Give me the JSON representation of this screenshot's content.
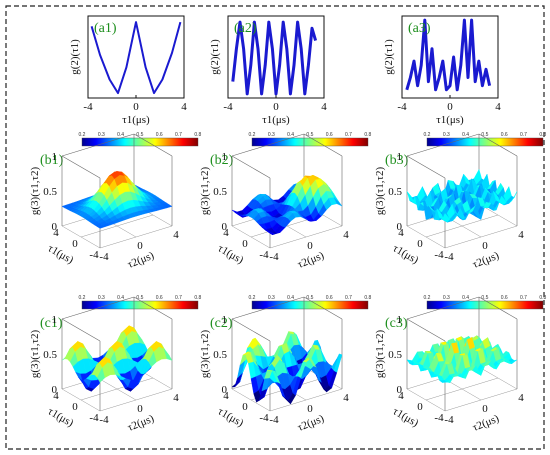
{
  "panels_a": [
    {
      "label": "(a1)",
      "ylabel": "g(2)(τ1)",
      "xlabel": "τ1(μs)",
      "xticks": [
        "-4",
        "0",
        "4"
      ]
    },
    {
      "label": "(a2)",
      "ylabel": "g(2)(τ1)",
      "xlabel": "τ1(μs)",
      "xticks": [
        "-4",
        "0",
        "4"
      ]
    },
    {
      "label": "(a3)",
      "ylabel": "g(2)(τ1)",
      "xlabel": "τ1(μs)",
      "xticks": [
        "-4",
        "0",
        "4"
      ]
    }
  ],
  "panels_3d": [
    {
      "label": "(b1)",
      "zlabel": "g(3)(τ1,τ2)",
      "x1label": "τ1(μs)",
      "x2label": "τ2(μs)",
      "zticks": [
        "0",
        "0.5",
        "1"
      ],
      "t1ticks": [
        "4",
        "0",
        "-4"
      ],
      "t2ticks": [
        "-4",
        "0",
        "4"
      ]
    },
    {
      "label": "(b2)",
      "zlabel": "g(3)(τ1,τ2)",
      "x1label": "τ1(μs)",
      "x2label": "τ2(μs)",
      "zticks": [
        "0",
        "0.5",
        "1"
      ],
      "t1ticks": [
        "4",
        "0",
        "-4"
      ],
      "t2ticks": [
        "-4",
        "0",
        "4"
      ]
    },
    {
      "label": "(b3)",
      "zlabel": "g(3)(τ1,τ2)",
      "x1label": "τ1(μs)",
      "x2label": "τ2(μs)",
      "zticks": [
        "0",
        "0.5",
        "1"
      ],
      "t1ticks": [
        "4",
        "0",
        "-4"
      ],
      "t2ticks": [
        "-4",
        "0",
        "4"
      ]
    },
    {
      "label": "(c1)",
      "zlabel": "g(3)(τ1,τ2)",
      "x1label": "τ1(μs)",
      "x2label": "τ2(μs)",
      "zticks": [
        "0",
        "0.5",
        "1"
      ],
      "t1ticks": [
        "4",
        "0",
        "-4"
      ],
      "t2ticks": [
        "-4",
        "0",
        "4"
      ]
    },
    {
      "label": "(c2)",
      "zlabel": "g(3)(τ1,τ2)",
      "x1label": "τ1(μs)",
      "x2label": "τ2(μs)",
      "zticks": [
        "0",
        "0.5",
        "1"
      ],
      "t1ticks": [
        "4",
        "0",
        "-4"
      ],
      "t2ticks": [
        "-4",
        "0",
        "4"
      ]
    },
    {
      "label": "(c3)",
      "zlabel": "g(3)(τ1,τ2)",
      "x1label": "τ1(μs)",
      "x2label": "τ2(μs)",
      "zticks": [
        "0",
        "0.5",
        "1"
      ],
      "t1ticks": [
        "4",
        "0",
        "-4"
      ],
      "t2ticks": [
        "-4",
        "0",
        "4"
      ]
    }
  ],
  "colors": {
    "line": "#1a1ad0",
    "panel_label": "#1d8f1d",
    "frame": "#222222"
  },
  "chart_data": [
    {
      "panel": "a1",
      "type": "line",
      "x": [
        -3.7,
        -3.0,
        -2.2,
        -1.5,
        -0.8,
        0.0,
        0.8,
        1.5,
        2.2,
        3.0,
        3.7
      ],
      "y": [
        1.75,
        1.05,
        0.45,
        0.12,
        0.75,
        1.85,
        0.75,
        0.12,
        0.45,
        1.1,
        1.85
      ],
      "xlim": [
        -4,
        4
      ],
      "ylim": [
        0,
        2
      ]
    },
    {
      "panel": "a2",
      "type": "line",
      "x": [
        -3.6,
        -3.3,
        -3.0,
        -2.7,
        -2.4,
        -2.1,
        -1.8,
        -1.5,
        -1.2,
        -0.9,
        -0.6,
        -0.3,
        0.0,
        0.3,
        0.6,
        0.9,
        1.2,
        1.5,
        1.8,
        2.1,
        2.4,
        2.7,
        3.0,
        3.3
      ],
      "y": [
        0.4,
        1.2,
        1.85,
        1.2,
        0.1,
        0.8,
        1.85,
        1.2,
        0.1,
        0.8,
        1.85,
        1.2,
        0.1,
        0.8,
        1.85,
        1.2,
        0.1,
        0.8,
        1.85,
        1.2,
        0.1,
        0.8,
        1.7,
        1.4
      ],
      "xlim": [
        -4,
        4
      ],
      "ylim": [
        0,
        2
      ]
    },
    {
      "panel": "a3",
      "type": "line",
      "x": [
        -3.6,
        -3.3,
        -3.0,
        -2.7,
        -2.4,
        -2.1,
        -1.8,
        -1.5,
        -1.2,
        -0.9,
        -0.6,
        -0.3,
        0.0,
        0.3,
        0.6,
        0.9,
        1.2,
        1.5,
        1.8,
        2.1,
        2.4,
        2.7,
        3.0,
        3.3
      ],
      "y": [
        0.2,
        0.5,
        0.9,
        0.3,
        0.8,
        1.9,
        0.4,
        1.2,
        0.2,
        0.5,
        0.9,
        0.2,
        0.3,
        1.0,
        0.2,
        0.8,
        1.9,
        0.5,
        1.9,
        0.4,
        0.9,
        0.3,
        0.7,
        0.3
      ],
      "xlim": [
        -4,
        4
      ],
      "ylim": [
        0,
        2
      ]
    },
    {
      "panel": "b1",
      "type": "heatmap",
      "zlim": [
        0,
        1
      ],
      "peak": 0.75
    },
    {
      "panel": "b2",
      "type": "heatmap",
      "zlim": [
        0,
        1
      ],
      "peak": 0.8
    },
    {
      "panel": "b3",
      "type": "heatmap",
      "zlim": [
        0,
        1
      ],
      "peak": 0.55
    },
    {
      "panel": "c1",
      "type": "heatmap",
      "zlim": [
        0,
        1
      ],
      "peak": 0.7
    },
    {
      "panel": "c2",
      "type": "heatmap",
      "zlim": [
        0,
        1
      ],
      "peak": 0.75
    },
    {
      "panel": "c3",
      "type": "heatmap",
      "zlim": [
        0,
        1
      ],
      "peak": 0.8
    }
  ]
}
